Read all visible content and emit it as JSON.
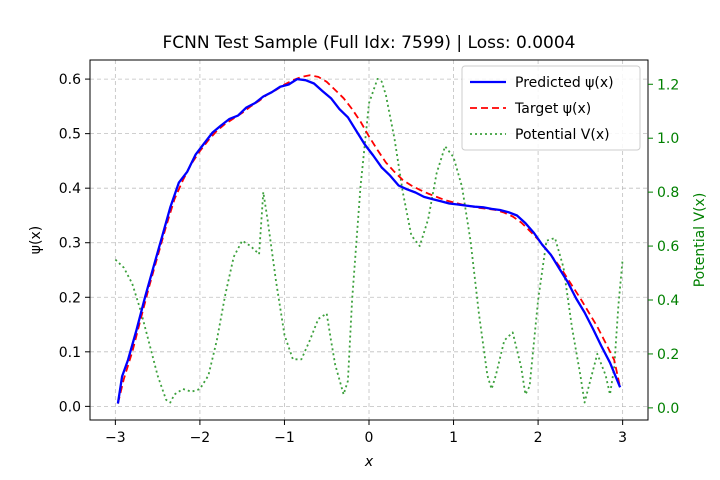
{
  "chart_data": {
    "type": "line",
    "title": "FCNN Test Sample (Full Idx: 7599) | Loss: 0.0004",
    "xlabel": "x",
    "ylabel": "ψ(x)",
    "y2label": "Potential V(x)",
    "xlim": [
      -3.3,
      3.3
    ],
    "ylim": [
      -0.025,
      0.635
    ],
    "y2lim": [
      -0.045,
      1.29
    ],
    "xticks": [
      -3,
      -2,
      -1,
      0,
      1,
      2,
      3
    ],
    "yticks": [
      0.0,
      0.1,
      0.2,
      0.3,
      0.4,
      0.5,
      0.6
    ],
    "y2ticks": [
      0.0,
      0.2,
      0.4,
      0.6,
      0.8,
      1.0,
      1.2
    ],
    "grid": true,
    "legend_position": "top-right",
    "series": [
      {
        "name": "Predicted ψ(x)",
        "axis": "left",
        "color": "#0000ff",
        "style": "solid",
        "x": [
          -2.97,
          -2.92,
          -2.85,
          -2.75,
          -2.65,
          -2.55,
          -2.45,
          -2.35,
          -2.25,
          -2.15,
          -2.05,
          -1.95,
          -1.85,
          -1.75,
          -1.65,
          -1.55,
          -1.45,
          -1.35,
          -1.25,
          -1.15,
          -1.05,
          -0.95,
          -0.85,
          -0.75,
          -0.65,
          -0.55,
          -0.45,
          -0.35,
          -0.25,
          -0.15,
          -0.05,
          0.05,
          0.15,
          0.25,
          0.35,
          0.45,
          0.55,
          0.65,
          0.75,
          0.85,
          0.95,
          1.05,
          1.15,
          1.25,
          1.35,
          1.45,
          1.55,
          1.65,
          1.75,
          1.85,
          1.95,
          2.05,
          2.15,
          2.25,
          2.35,
          2.45,
          2.55,
          2.65,
          2.75,
          2.85,
          2.97
        ],
        "y": [
          0.005,
          0.055,
          0.085,
          0.14,
          0.2,
          0.255,
          0.31,
          0.365,
          0.41,
          0.43,
          0.462,
          0.482,
          0.502,
          0.515,
          0.527,
          0.533,
          0.548,
          0.556,
          0.568,
          0.576,
          0.586,
          0.59,
          0.6,
          0.598,
          0.592,
          0.578,
          0.565,
          0.545,
          0.53,
          0.505,
          0.48,
          0.46,
          0.438,
          0.423,
          0.405,
          0.398,
          0.392,
          0.384,
          0.38,
          0.376,
          0.372,
          0.37,
          0.368,
          0.366,
          0.365,
          0.362,
          0.36,
          0.356,
          0.35,
          0.336,
          0.318,
          0.296,
          0.278,
          0.253,
          0.228,
          0.198,
          0.172,
          0.142,
          0.11,
          0.08,
          0.035
        ]
      },
      {
        "name": "Target ψ(x)",
        "axis": "left",
        "color": "#ff0000",
        "style": "dashed",
        "x": [
          -2.97,
          -2.9,
          -2.8,
          -2.7,
          -2.6,
          -2.5,
          -2.4,
          -2.3,
          -2.2,
          -2.1,
          -2.0,
          -1.9,
          -1.8,
          -1.7,
          -1.6,
          -1.5,
          -1.4,
          -1.3,
          -1.2,
          -1.1,
          -1.0,
          -0.9,
          -0.8,
          -0.7,
          -0.6,
          -0.5,
          -0.4,
          -0.3,
          -0.2,
          -0.1,
          0.0,
          0.1,
          0.2,
          0.3,
          0.4,
          0.5,
          0.6,
          0.7,
          0.8,
          0.9,
          1.0,
          1.1,
          1.2,
          1.3,
          1.4,
          1.5,
          1.6,
          1.7,
          1.8,
          1.9,
          2.0,
          2.1,
          2.2,
          2.3,
          2.4,
          2.5,
          2.6,
          2.7,
          2.8,
          2.9,
          2.97
        ],
        "y": [
          0.005,
          0.05,
          0.1,
          0.16,
          0.22,
          0.275,
          0.33,
          0.38,
          0.415,
          0.445,
          0.468,
          0.488,
          0.505,
          0.518,
          0.528,
          0.538,
          0.55,
          0.56,
          0.572,
          0.58,
          0.59,
          0.598,
          0.604,
          0.607,
          0.604,
          0.595,
          0.58,
          0.565,
          0.545,
          0.522,
          0.495,
          0.47,
          0.447,
          0.43,
          0.415,
          0.405,
          0.397,
          0.39,
          0.384,
          0.378,
          0.374,
          0.37,
          0.367,
          0.364,
          0.362,
          0.36,
          0.355,
          0.348,
          0.337,
          0.322,
          0.306,
          0.288,
          0.268,
          0.246,
          0.222,
          0.198,
          0.172,
          0.146,
          0.116,
          0.085,
          0.035
        ]
      },
      {
        "name": "Potential V(x)",
        "axis": "right",
        "color": "#3ca03c",
        "style": "dotted",
        "x": [
          -3.0,
          -2.9,
          -2.8,
          -2.7,
          -2.6,
          -2.5,
          -2.4,
          -2.35,
          -2.3,
          -2.2,
          -2.1,
          -2.0,
          -1.9,
          -1.8,
          -1.7,
          -1.6,
          -1.5,
          -1.4,
          -1.3,
          -1.25,
          -1.2,
          -1.1,
          -1.0,
          -0.9,
          -0.8,
          -0.7,
          -0.6,
          -0.5,
          -0.45,
          -0.4,
          -0.3,
          -0.25,
          -0.2,
          -0.1,
          0.0,
          0.1,
          0.15,
          0.2,
          0.3,
          0.4,
          0.5,
          0.6,
          0.7,
          0.8,
          0.9,
          1.0,
          1.1,
          1.2,
          1.3,
          1.4,
          1.45,
          1.5,
          1.6,
          1.7,
          1.8,
          1.85,
          1.9,
          2.0,
          2.1,
          2.2,
          2.3,
          2.4,
          2.5,
          2.55,
          2.6,
          2.7,
          2.8,
          2.85,
          2.9,
          2.95,
          3.0
        ],
        "y": [
          0.55,
          0.52,
          0.46,
          0.36,
          0.24,
          0.12,
          0.03,
          0.02,
          0.05,
          0.07,
          0.06,
          0.07,
          0.12,
          0.25,
          0.42,
          0.56,
          0.62,
          0.6,
          0.57,
          0.8,
          0.7,
          0.47,
          0.27,
          0.18,
          0.18,
          0.25,
          0.33,
          0.35,
          0.25,
          0.16,
          0.05,
          0.1,
          0.4,
          0.82,
          1.13,
          1.22,
          1.21,
          1.16,
          1.0,
          0.8,
          0.64,
          0.6,
          0.7,
          0.87,
          0.97,
          0.93,
          0.82,
          0.62,
          0.35,
          0.12,
          0.07,
          0.12,
          0.25,
          0.28,
          0.15,
          0.05,
          0.08,
          0.4,
          0.62,
          0.63,
          0.52,
          0.3,
          0.12,
          0.02,
          0.08,
          0.2,
          0.12,
          0.05,
          0.15,
          0.38,
          0.55
        ]
      }
    ]
  }
}
